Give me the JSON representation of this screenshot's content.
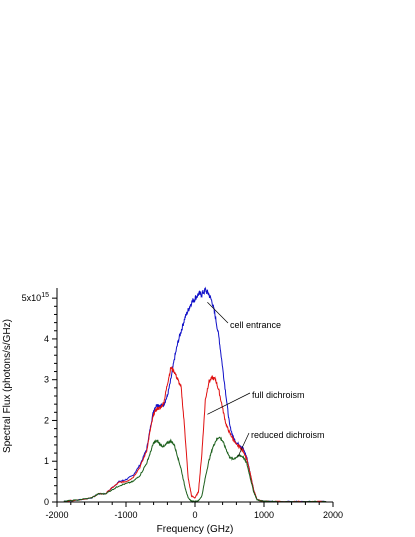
{
  "chart_data": {
    "type": "line",
    "title": "",
    "xlabel": "Frequency (GHz)",
    "ylabel": "Spectral Flux (photons/s/GHz)",
    "xlim": [
      -2000,
      2000
    ],
    "ylim": [
      0,
      5.2
    ],
    "y_scale_label": {
      "mantissa": "5x10",
      "exponent": "15"
    },
    "x_ticks": [
      {
        "value": -2000,
        "label": "-2000"
      },
      {
        "value": -1000,
        "label": "-1000"
      },
      {
        "value": 0,
        "label": "0"
      },
      {
        "value": 1000,
        "label": "1000"
      },
      {
        "value": 2000,
        "label": "2000"
      }
    ],
    "y_ticks": [
      {
        "value": 0,
        "label": "0"
      },
      {
        "value": 1,
        "label": "1"
      },
      {
        "value": 2,
        "label": "2"
      },
      {
        "value": 3,
        "label": "3"
      },
      {
        "value": 4,
        "label": "4"
      }
    ],
    "grid": false,
    "series": [
      {
        "name": "cell entrance",
        "color": "#1010c8",
        "x": [
          -1900,
          -1700,
          -1500,
          -1400,
          -1300,
          -1200,
          -1100,
          -1000,
          -900,
          -800,
          -700,
          -650,
          -600,
          -550,
          -500,
          -450,
          -400,
          -350,
          -300,
          -250,
          -200,
          -150,
          -100,
          -50,
          0,
          50,
          100,
          150,
          200,
          250,
          300,
          350,
          400,
          450,
          500,
          550,
          600,
          650,
          700,
          750,
          800,
          850,
          900,
          1000,
          1200,
          1500,
          1900
        ],
        "y": [
          0.02,
          0.05,
          0.1,
          0.2,
          0.2,
          0.35,
          0.5,
          0.55,
          0.65,
          0.9,
          1.3,
          1.8,
          2.25,
          2.4,
          2.35,
          2.4,
          2.6,
          3.0,
          3.5,
          3.9,
          4.2,
          4.5,
          4.7,
          4.9,
          5.0,
          5.1,
          5.1,
          5.2,
          5.1,
          4.9,
          4.5,
          4.0,
          3.3,
          2.6,
          1.9,
          1.6,
          1.45,
          1.4,
          1.3,
          1.1,
          0.7,
          0.3,
          0.05,
          0.02,
          0.01,
          0.01,
          0.01
        ]
      },
      {
        "name": "full dichroism",
        "color": "#e01010",
        "x": [
          -1900,
          -1700,
          -1500,
          -1400,
          -1300,
          -1200,
          -1100,
          -1000,
          -900,
          -800,
          -700,
          -650,
          -600,
          -550,
          -500,
          -450,
          -400,
          -350,
          -300,
          -250,
          -200,
          -150,
          -100,
          -50,
          0,
          50,
          100,
          150,
          200,
          250,
          300,
          350,
          400,
          450,
          500,
          550,
          600,
          650,
          700,
          750,
          800,
          850,
          900,
          1000,
          1200,
          1500,
          1900
        ],
        "y": [
          0.02,
          0.05,
          0.1,
          0.2,
          0.2,
          0.35,
          0.48,
          0.5,
          0.6,
          0.85,
          1.25,
          1.75,
          2.15,
          2.3,
          2.3,
          2.45,
          2.9,
          3.3,
          3.2,
          3.0,
          2.8,
          1.8,
          0.6,
          0.15,
          0.1,
          0.25,
          1.2,
          2.5,
          2.95,
          3.05,
          3.0,
          2.7,
          2.3,
          1.9,
          1.7,
          1.55,
          1.4,
          1.35,
          1.25,
          1.05,
          0.7,
          0.3,
          0.05,
          0.02,
          0.01,
          0.01,
          0.01
        ]
      },
      {
        "name": "reduced dichroism",
        "color": "#1a5e1a",
        "x": [
          -1900,
          -1700,
          -1500,
          -1400,
          -1300,
          -1200,
          -1100,
          -1000,
          -900,
          -800,
          -700,
          -650,
          -600,
          -550,
          -500,
          -450,
          -400,
          -350,
          -300,
          -250,
          -200,
          -150,
          -100,
          -50,
          0,
          50,
          100,
          150,
          200,
          250,
          300,
          350,
          400,
          450,
          500,
          550,
          600,
          650,
          700,
          750,
          800,
          850,
          900,
          1000,
          1200,
          1500,
          1900
        ],
        "y": [
          0.02,
          0.05,
          0.1,
          0.2,
          0.2,
          0.3,
          0.4,
          0.45,
          0.5,
          0.65,
          0.95,
          1.2,
          1.45,
          1.5,
          1.4,
          1.35,
          1.45,
          1.5,
          1.4,
          1.1,
          0.8,
          0.4,
          0.1,
          0.02,
          0.01,
          0.03,
          0.15,
          0.6,
          1.0,
          1.3,
          1.5,
          1.6,
          1.5,
          1.3,
          1.1,
          1.05,
          1.1,
          1.15,
          1.1,
          0.95,
          0.6,
          0.25,
          0.05,
          0.02,
          0.01,
          0.01,
          0.01
        ]
      }
    ],
    "annotations": [
      {
        "text": "cell entrance",
        "target_series": "cell entrance",
        "target_x": 180,
        "target_y": 4.9
      },
      {
        "text": "full dichroism",
        "target_series": "full dichroism",
        "target_x": 180,
        "target_y": 2.15
      },
      {
        "text": "reduced dichroism",
        "target_series": "reduced dichroism",
        "target_x": 620,
        "target_y": 1.1
      }
    ]
  }
}
